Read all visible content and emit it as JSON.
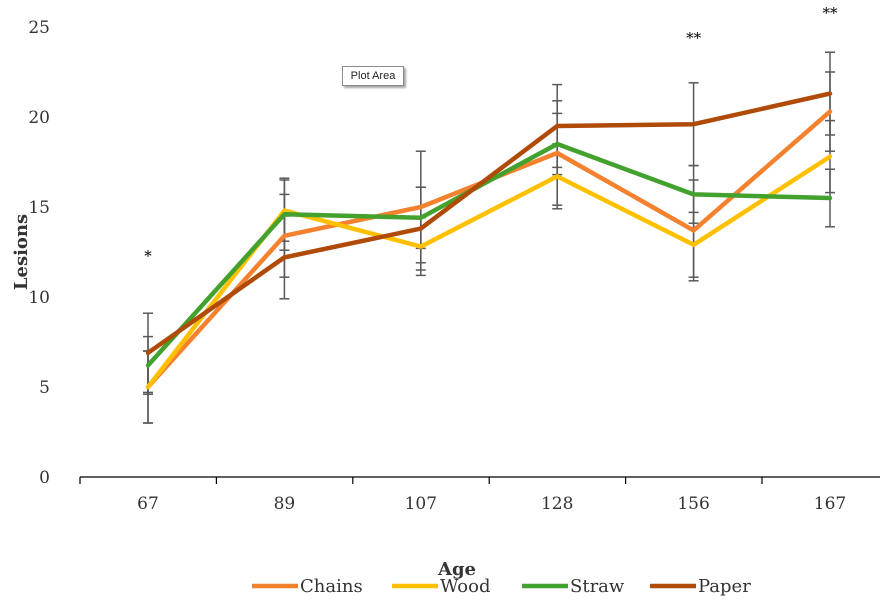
{
  "chart_data": {
    "type": "line",
    "xlabel": "Age",
    "ylabel": "Lesions",
    "ylim": [
      0,
      25
    ],
    "yticks": [
      0,
      5,
      10,
      15,
      20,
      25
    ],
    "categories": [
      "67",
      "89",
      "107",
      "128",
      "156",
      "167"
    ],
    "series": [
      {
        "name": "Chains",
        "color": "#F4812E",
        "values": [
          5.0,
          13.4,
          15.0,
          18.0,
          13.7,
          20.3
        ],
        "errors": [
          2.0,
          2.3,
          3.1,
          2.9,
          2.8,
          2.2
        ]
      },
      {
        "name": "Wood",
        "color": "#FFC000",
        "values": [
          5.0,
          14.8,
          12.8,
          16.7,
          12.9,
          17.8
        ],
        "errors": [
          2.0,
          1.7,
          1.6,
          1.8,
          1.8,
          2.0
        ]
      },
      {
        "name": "Straw",
        "color": "#43A12E",
        "values": [
          6.2,
          14.6,
          14.4,
          18.5,
          15.7,
          15.5
        ],
        "errors": [
          1.6,
          2.0,
          1.7,
          1.7,
          1.6,
          1.6
        ]
      },
      {
        "name": "Paper",
        "color": "#B04A07",
        "values": [
          6.9,
          12.2,
          13.8,
          19.5,
          19.6,
          21.3
        ],
        "errors": [
          2.2,
          2.3,
          2.3,
          2.3,
          2.3,
          2.3
        ]
      }
    ],
    "annotations": [
      {
        "category": "67",
        "text": "*",
        "y": 12.0
      },
      {
        "category": "156",
        "text": "**",
        "y": 24.1
      },
      {
        "category": "167",
        "text": "**",
        "y": 25.5
      }
    ],
    "legend_position": "bottom",
    "grid": false
  },
  "tooltip": {
    "label": "Plot Area"
  }
}
